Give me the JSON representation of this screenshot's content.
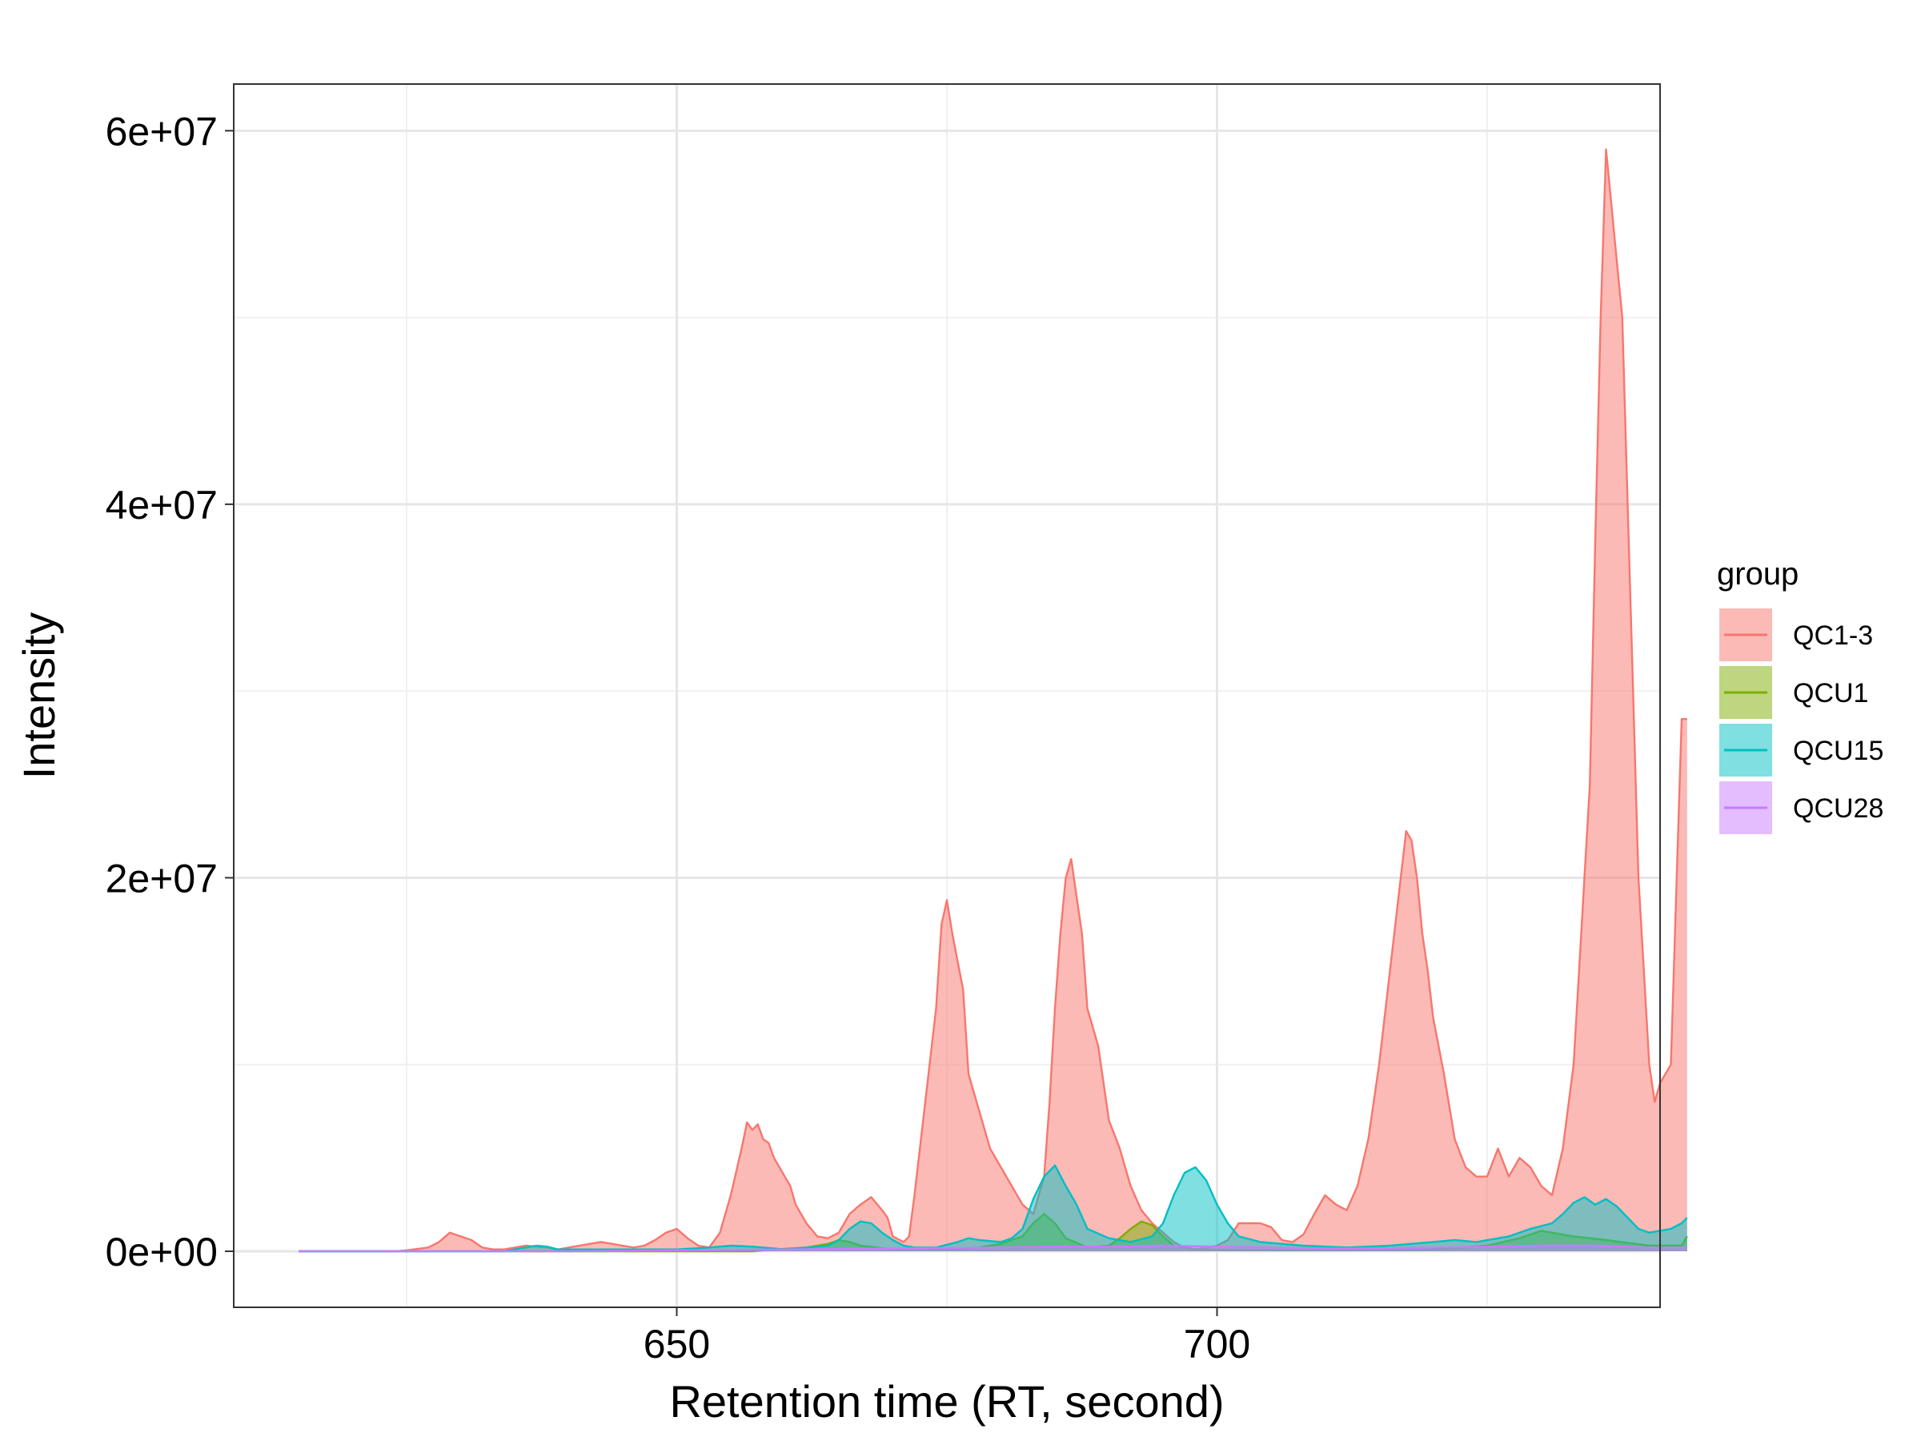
{
  "chart_data": {
    "type": "area",
    "title": "",
    "xlabel": "Retention time (RT, second)",
    "ylabel": "Intensity",
    "xlim": [
      609,
      741
    ],
    "ylim": [
      -3000000,
      62500000
    ],
    "x_ticks": [
      650,
      700
    ],
    "x_tick_labels": [
      "650",
      "700"
    ],
    "x_minor_ticks": [
      625,
      675,
      725
    ],
    "y_ticks": [
      0,
      20000000,
      40000000,
      60000000
    ],
    "y_tick_labels": [
      "0e+00",
      "2e+07",
      "4e+07",
      "6e+07"
    ],
    "y_minor_ticks": [
      10000000,
      30000000,
      50000000
    ],
    "grid": true,
    "legend": {
      "title": "group",
      "position": "right",
      "entries": [
        "QC1-3",
        "QCU1",
        "QCU15",
        "QCU28"
      ]
    },
    "series": [
      {
        "name": "QC1-3",
        "color": "#F8766D",
        "points": [
          [
            615,
            0
          ],
          [
            624,
            0
          ],
          [
            625,
            50000
          ],
          [
            627,
            200000
          ],
          [
            628,
            500000
          ],
          [
            629,
            1000000
          ],
          [
            630,
            800000
          ],
          [
            631,
            600000
          ],
          [
            632,
            200000
          ],
          [
            633,
            100000
          ],
          [
            634,
            100000
          ],
          [
            636,
            300000
          ],
          [
            638,
            200000
          ],
          [
            639,
            100000
          ],
          [
            640,
            200000
          ],
          [
            642,
            400000
          ],
          [
            643,
            500000
          ],
          [
            645,
            300000
          ],
          [
            646,
            200000
          ],
          [
            647,
            300000
          ],
          [
            648,
            600000
          ],
          [
            649,
            1000000
          ],
          [
            650,
            1200000
          ],
          [
            651,
            700000
          ],
          [
            652,
            300000
          ],
          [
            653,
            200000
          ],
          [
            654,
            1000000
          ],
          [
            655,
            3000000
          ],
          [
            656,
            5500000
          ],
          [
            656.5,
            6900000
          ],
          [
            657,
            6500000
          ],
          [
            657.5,
            6800000
          ],
          [
            658,
            6000000
          ],
          [
            658.5,
            5800000
          ],
          [
            659,
            5000000
          ],
          [
            660,
            4000000
          ],
          [
            660.5,
            3500000
          ],
          [
            661,
            2500000
          ],
          [
            662,
            1500000
          ],
          [
            663,
            800000
          ],
          [
            664,
            700000
          ],
          [
            665,
            1000000
          ],
          [
            666,
            2000000
          ],
          [
            667,
            2500000
          ],
          [
            668,
            2900000
          ],
          [
            669,
            2200000
          ],
          [
            669.5,
            1800000
          ],
          [
            670,
            800000
          ],
          [
            671,
            500000
          ],
          [
            671.5,
            800000
          ],
          [
            672,
            3000000
          ],
          [
            673,
            8000000
          ],
          [
            674,
            13000000
          ],
          [
            674.5,
            17500000
          ],
          [
            675,
            18800000
          ],
          [
            675.5,
            17000000
          ],
          [
            676,
            15500000
          ],
          [
            676.5,
            14000000
          ],
          [
            677,
            9500000
          ],
          [
            678,
            7500000
          ],
          [
            679,
            5500000
          ],
          [
            680,
            4500000
          ],
          [
            681,
            3500000
          ],
          [
            682,
            2500000
          ],
          [
            683,
            2000000
          ],
          [
            684,
            4000000
          ],
          [
            684.5,
            8000000
          ],
          [
            685,
            13000000
          ],
          [
            685.5,
            17000000
          ],
          [
            686,
            20000000
          ],
          [
            686.5,
            21000000
          ],
          [
            687,
            19000000
          ],
          [
            687.5,
            17000000
          ],
          [
            688,
            13000000
          ],
          [
            689,
            11000000
          ],
          [
            690,
            7000000
          ],
          [
            691,
            5500000
          ],
          [
            692,
            3500000
          ],
          [
            693,
            2200000
          ],
          [
            694,
            1500000
          ],
          [
            695,
            1000000
          ],
          [
            696,
            500000
          ],
          [
            697,
            200000
          ],
          [
            698,
            100000
          ],
          [
            699,
            200000
          ],
          [
            700,
            300000
          ],
          [
            701,
            600000
          ],
          [
            702,
            1500000
          ],
          [
            703,
            1500000
          ],
          [
            704,
            1500000
          ],
          [
            705,
            1300000
          ],
          [
            706,
            600000
          ],
          [
            707,
            500000
          ],
          [
            708,
            900000
          ],
          [
            709,
            2000000
          ],
          [
            710,
            3000000
          ],
          [
            711,
            2500000
          ],
          [
            712,
            2200000
          ],
          [
            713,
            3500000
          ],
          [
            714,
            6000000
          ],
          [
            715,
            10000000
          ],
          [
            716,
            15000000
          ],
          [
            717,
            20000000
          ],
          [
            717.5,
            22500000
          ],
          [
            718,
            22000000
          ],
          [
            718.5,
            20000000
          ],
          [
            719,
            17000000
          ],
          [
            719.5,
            15000000
          ],
          [
            720,
            12500000
          ],
          [
            721,
            9500000
          ],
          [
            722,
            6000000
          ],
          [
            723,
            4500000
          ],
          [
            724,
            4000000
          ],
          [
            725,
            4000000
          ],
          [
            726,
            5500000
          ],
          [
            727,
            4000000
          ],
          [
            728,
            5000000
          ],
          [
            729,
            4500000
          ],
          [
            730,
            3500000
          ],
          [
            731,
            3000000
          ],
          [
            732,
            5500000
          ],
          [
            733,
            10000000
          ],
          [
            733.5,
            15000000
          ],
          [
            734,
            20000000
          ],
          [
            734.5,
            25000000
          ],
          [
            735,
            38000000
          ],
          [
            735.5,
            50000000
          ],
          [
            736,
            59000000
          ],
          [
            736.5,
            56000000
          ],
          [
            737,
            53000000
          ],
          [
            737.5,
            50000000
          ],
          [
            738,
            40000000
          ],
          [
            738.5,
            30000000
          ],
          [
            739,
            20000000
          ],
          [
            739.5,
            15000000
          ],
          [
            740,
            10000000
          ],
          [
            740.5,
            8000000
          ],
          [
            741,
            9000000
          ],
          [
            742,
            10000000
          ],
          [
            743,
            28500000
          ],
          [
            743.5,
            28500000
          ],
          [
            743.5,
            0
          ]
        ]
      },
      {
        "name": "QCU1",
        "color": "#7CAE00",
        "points": [
          [
            615,
            0
          ],
          [
            657,
            0
          ],
          [
            659,
            100000
          ],
          [
            662,
            200000
          ],
          [
            664,
            400000
          ],
          [
            665,
            600000
          ],
          [
            666,
            500000
          ],
          [
            667,
            300000
          ],
          [
            670,
            100000
          ],
          [
            676,
            100000
          ],
          [
            678,
            200000
          ],
          [
            680,
            400000
          ],
          [
            682,
            800000
          ],
          [
            683,
            1500000
          ],
          [
            684,
            2000000
          ],
          [
            685,
            1500000
          ],
          [
            686,
            700000
          ],
          [
            688,
            200000
          ],
          [
            690,
            300000
          ],
          [
            691,
            700000
          ],
          [
            692,
            1200000
          ],
          [
            693,
            1600000
          ],
          [
            694,
            1400000
          ],
          [
            695,
            800000
          ],
          [
            696,
            300000
          ],
          [
            698,
            100000
          ],
          [
            705,
            50000
          ],
          [
            712,
            50000
          ],
          [
            720,
            100000
          ],
          [
            725,
            300000
          ],
          [
            728,
            700000
          ],
          [
            730,
            1100000
          ],
          [
            733,
            800000
          ],
          [
            736,
            600000
          ],
          [
            740,
            300000
          ],
          [
            743,
            300000
          ],
          [
            743.5,
            800000
          ],
          [
            743.5,
            0
          ]
        ]
      },
      {
        "name": "QCU15",
        "color": "#00BFC4",
        "points": [
          [
            615,
            0
          ],
          [
            634,
            0
          ],
          [
            636,
            200000
          ],
          [
            637,
            300000
          ],
          [
            638,
            250000
          ],
          [
            639,
            100000
          ],
          [
            642,
            100000
          ],
          [
            648,
            100000
          ],
          [
            650,
            100000
          ],
          [
            653,
            200000
          ],
          [
            655,
            300000
          ],
          [
            657,
            250000
          ],
          [
            660,
            100000
          ],
          [
            662,
            200000
          ],
          [
            664,
            300000
          ],
          [
            665,
            600000
          ],
          [
            666,
            1200000
          ],
          [
            667,
            1600000
          ],
          [
            668,
            1500000
          ],
          [
            669,
            1000000
          ],
          [
            670,
            600000
          ],
          [
            671,
            300000
          ],
          [
            672,
            200000
          ],
          [
            674,
            200000
          ],
          [
            676,
            500000
          ],
          [
            677,
            700000
          ],
          [
            678,
            600000
          ],
          [
            680,
            500000
          ],
          [
            681,
            700000
          ],
          [
            682,
            1200000
          ],
          [
            683,
            2800000
          ],
          [
            684,
            4000000
          ],
          [
            685,
            4600000
          ],
          [
            686,
            3500000
          ],
          [
            687,
            2500000
          ],
          [
            688,
            1200000
          ],
          [
            690,
            700000
          ],
          [
            692,
            500000
          ],
          [
            694,
            800000
          ],
          [
            695,
            1500000
          ],
          [
            696,
            3000000
          ],
          [
            697,
            4200000
          ],
          [
            698,
            4500000
          ],
          [
            699,
            3800000
          ],
          [
            700,
            2500000
          ],
          [
            701,
            1500000
          ],
          [
            702,
            800000
          ],
          [
            704,
            500000
          ],
          [
            706,
            400000
          ],
          [
            708,
            300000
          ],
          [
            712,
            200000
          ],
          [
            716,
            300000
          ],
          [
            718,
            400000
          ],
          [
            720,
            500000
          ],
          [
            722,
            600000
          ],
          [
            724,
            500000
          ],
          [
            727,
            800000
          ],
          [
            729,
            1200000
          ],
          [
            731,
            1500000
          ],
          [
            732,
            2000000
          ],
          [
            733,
            2600000
          ],
          [
            734,
            2900000
          ],
          [
            735,
            2500000
          ],
          [
            736,
            2800000
          ],
          [
            737,
            2400000
          ],
          [
            738,
            1800000
          ],
          [
            739,
            1200000
          ],
          [
            740,
            1000000
          ],
          [
            742,
            1200000
          ],
          [
            743,
            1500000
          ],
          [
            743.5,
            1800000
          ],
          [
            743.5,
            0
          ]
        ]
      },
      {
        "name": "QCU28",
        "color": "#C77CFF",
        "points": [
          [
            615,
            0
          ],
          [
            640,
            0
          ],
          [
            650,
            50000
          ],
          [
            660,
            100000
          ],
          [
            670,
            150000
          ],
          [
            680,
            200000
          ],
          [
            685,
            250000
          ],
          [
            690,
            250000
          ],
          [
            695,
            300000
          ],
          [
            700,
            250000
          ],
          [
            705,
            200000
          ],
          [
            710,
            150000
          ],
          [
            715,
            150000
          ],
          [
            720,
            200000
          ],
          [
            725,
            250000
          ],
          [
            730,
            300000
          ],
          [
            735,
            300000
          ],
          [
            740,
            200000
          ],
          [
            743.5,
            200000
          ],
          [
            743.5,
            0
          ]
        ]
      }
    ]
  }
}
